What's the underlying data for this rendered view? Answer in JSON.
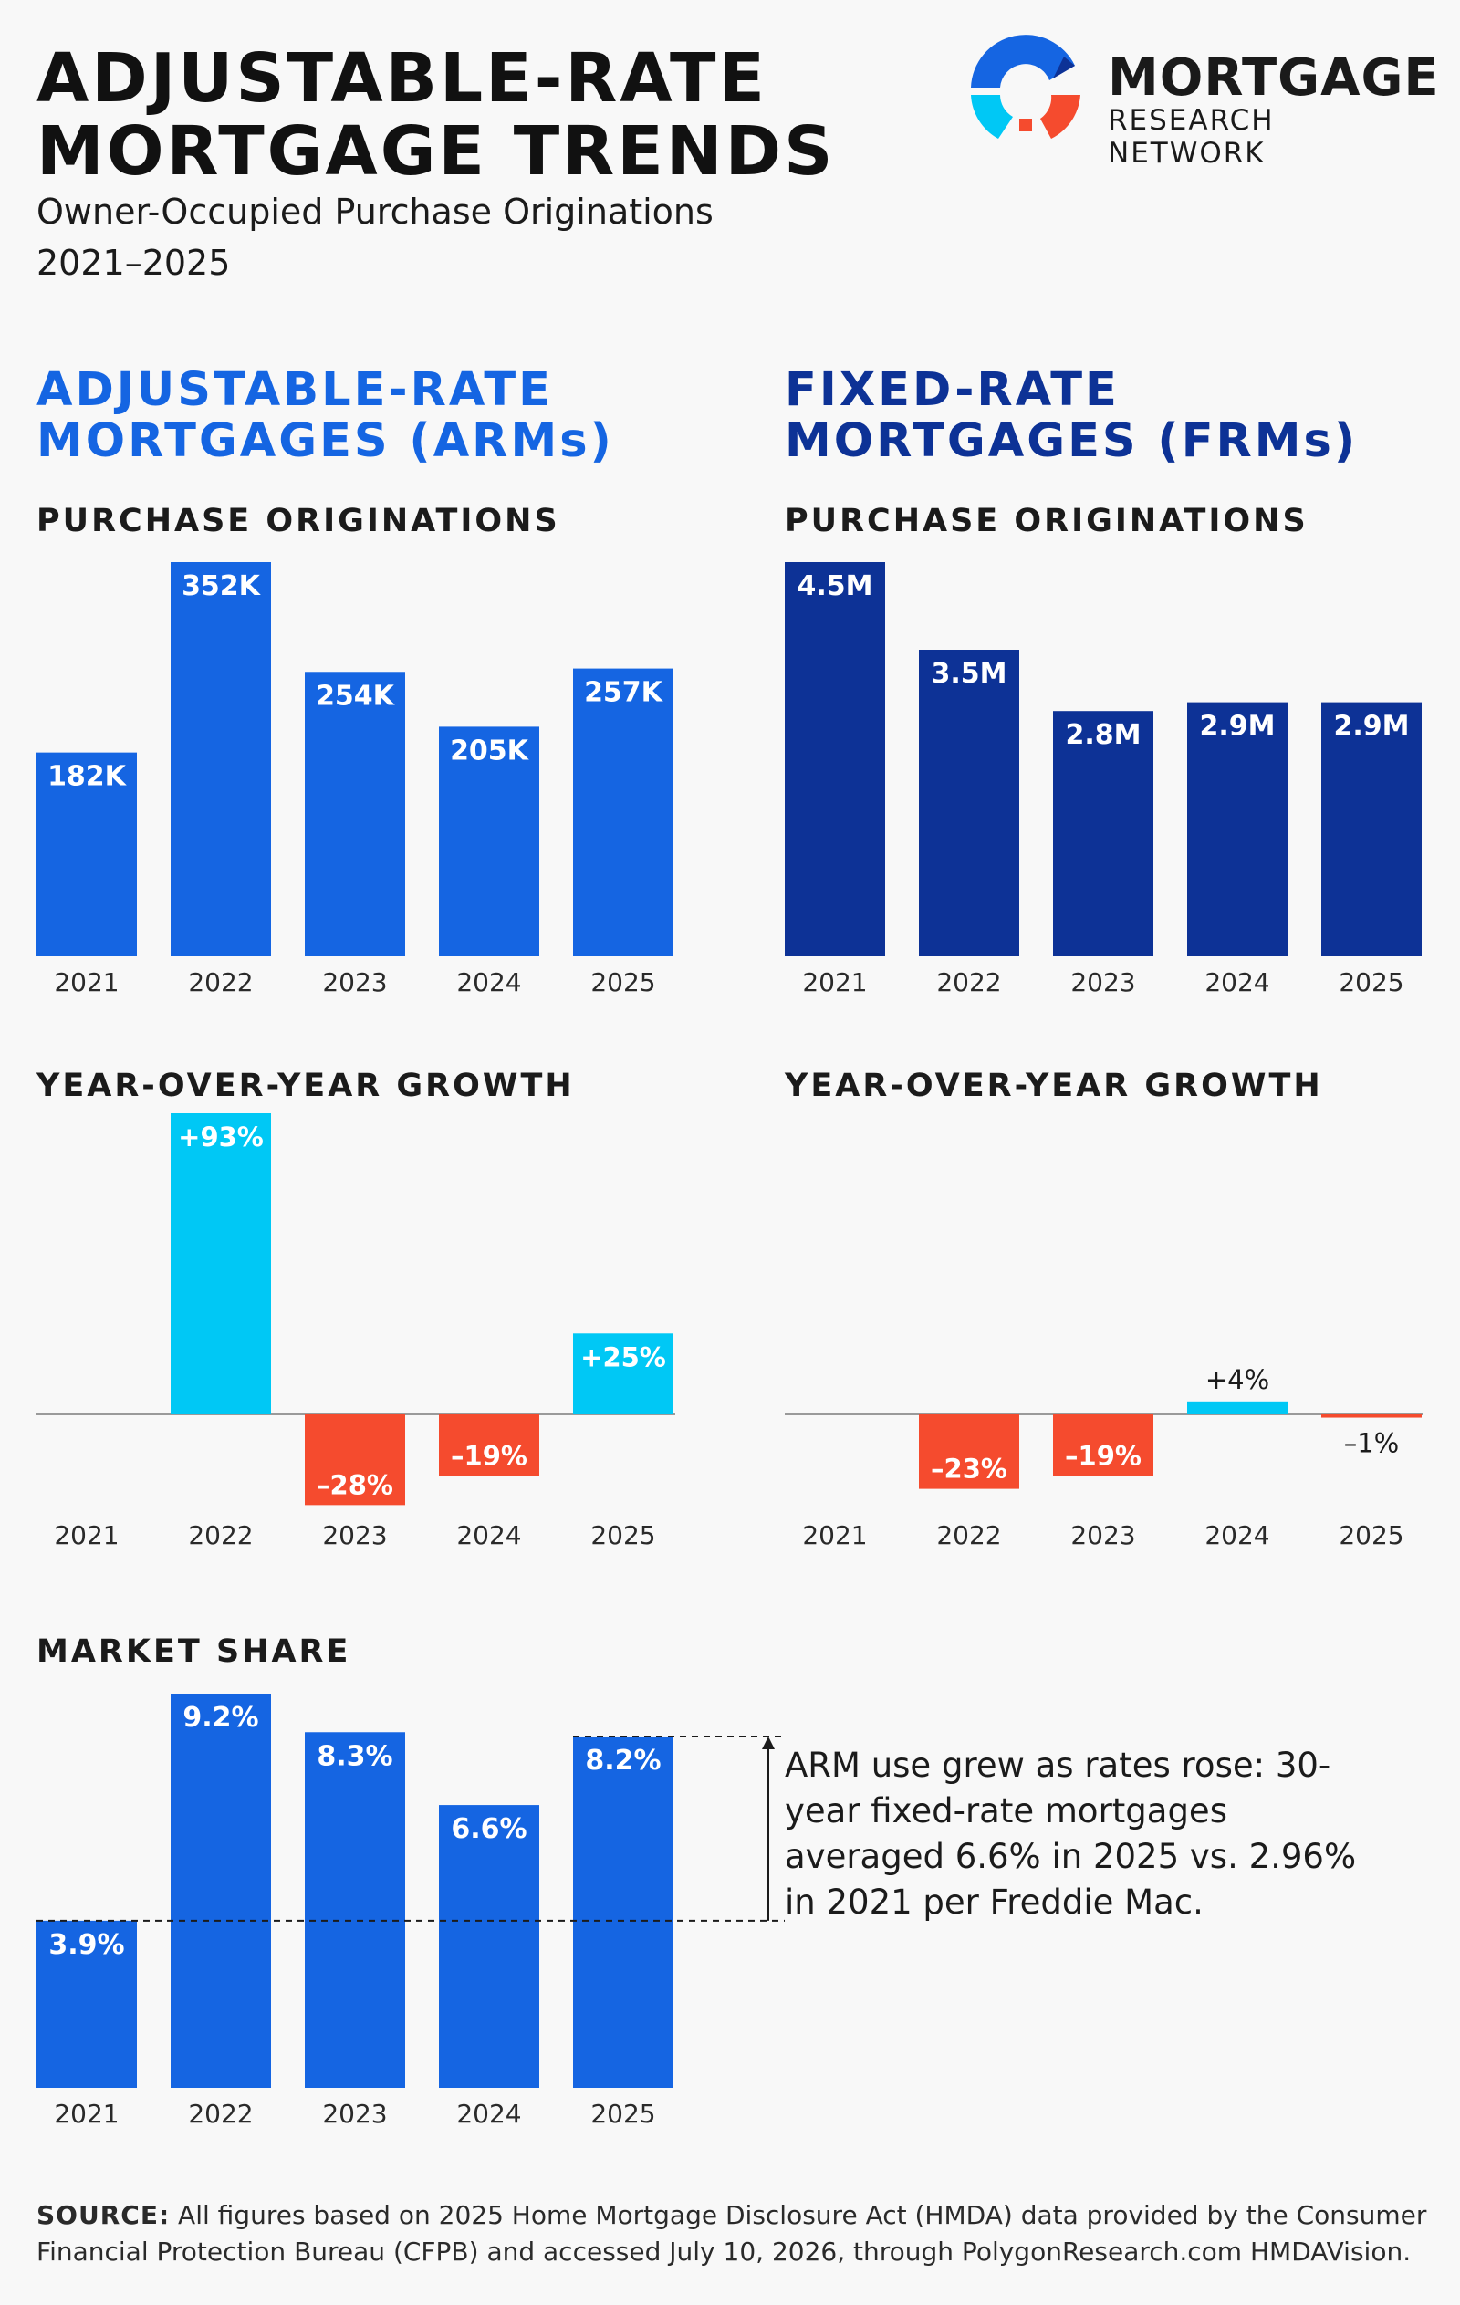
{
  "header": {
    "title_line1": "ADJUSTABLE-RATE",
    "title_line2": "MORTGAGE TRENDS",
    "subtitle_line1": "Owner-Occupied Purchase Originations",
    "subtitle_line2": "2021–2025"
  },
  "logo": {
    "word": "MORTGAGE",
    "sub": "RESEARCH NETWORK"
  },
  "columns": {
    "arm_line1": "ADJUSTABLE-RATE",
    "arm_line2": "MORTGAGES (ARMs)",
    "frm_line1": "FIXED-RATE",
    "frm_line2": "MORTGAGES (FRMs)"
  },
  "sections": {
    "purchase": "PURCHASE ORIGINATIONS",
    "yoy": "YEAR-OVER-YEAR GROWTH",
    "share": "MARKET SHARE"
  },
  "note": "ARM use grew as rates rose: 30-year fixed-rate mortgages averaged 6.6% in 2025 vs. 2.96% in 2021 per Freddie Mac.",
  "source": {
    "label": "SOURCE:",
    "text": "All figures based on 2025 Home Mortgage Disclosure Act (HMDA) data provided by the Consumer Financial Protection Bureau (CFPB) and accessed July 10, 2026, through PolygonResearch.com HMDAVision."
  },
  "colors": {
    "arm_blue": "#1565e2",
    "frm_navy": "#0d3296",
    "growth_cyan": "#00c8f5",
    "decline_red": "#f54b2e"
  },
  "chart_data": [
    {
      "id": "arm-originations",
      "type": "bar",
      "categories": [
        "2021",
        "2022",
        "2023",
        "2024",
        "2025"
      ],
      "values": [
        182000,
        352000,
        254000,
        205000,
        257000
      ],
      "labels": [
        "182K",
        "352K",
        "254K",
        "205K",
        "257K"
      ],
      "ylim": [
        0,
        352000
      ],
      "title": "PURCHASE ORIGINATIONS",
      "xlabel": "",
      "ylabel": "",
      "grid": false
    },
    {
      "id": "frm-originations",
      "type": "bar",
      "categories": [
        "2021",
        "2022",
        "2023",
        "2024",
        "2025"
      ],
      "values": [
        4500000,
        3500000,
        2800000,
        2900000,
        2900000
      ],
      "labels": [
        "4.5M",
        "3.5M",
        "2.8M",
        "2.9M",
        "2.9M"
      ],
      "ylim": [
        0,
        4500000
      ],
      "title": "PURCHASE ORIGINATIONS",
      "xlabel": "",
      "ylabel": "",
      "grid": false
    },
    {
      "id": "arm-growth",
      "type": "bar",
      "categories": [
        "2021",
        "2022",
        "2023",
        "2024",
        "2025"
      ],
      "values": [
        null,
        93,
        -28,
        -19,
        25
      ],
      "labels": [
        "",
        "+93%",
        "–28%",
        "–19%",
        "+25%"
      ],
      "unit": "%",
      "ylim": [
        -30,
        93
      ],
      "title": "YEAR-OVER-YEAR GROWTH",
      "xlabel": "",
      "ylabel": "",
      "grid": false
    },
    {
      "id": "frm-growth",
      "type": "bar",
      "categories": [
        "2021",
        "2022",
        "2023",
        "2024",
        "2025"
      ],
      "values": [
        null,
        -23,
        -19,
        4,
        -1
      ],
      "labels": [
        "",
        "–23%",
        "–19%",
        "+4%",
        "–1%"
      ],
      "unit": "%",
      "ylim": [
        -30,
        93
      ],
      "title": "YEAR-OVER-YEAR GROWTH",
      "xlabel": "",
      "ylabel": "",
      "grid": false
    },
    {
      "id": "arm-market-share",
      "type": "bar",
      "categories": [
        "2021",
        "2022",
        "2023",
        "2024",
        "2025"
      ],
      "values": [
        3.9,
        9.2,
        8.3,
        6.6,
        8.2
      ],
      "labels": [
        "3.9%",
        "9.2%",
        "8.3%",
        "6.6%",
        "8.2%"
      ],
      "unit": "%",
      "ylim": [
        0,
        9.2
      ],
      "title": "MARKET SHARE",
      "xlabel": "",
      "ylabel": "",
      "grid": false,
      "reference_lines": [
        3.9,
        8.2
      ]
    }
  ]
}
